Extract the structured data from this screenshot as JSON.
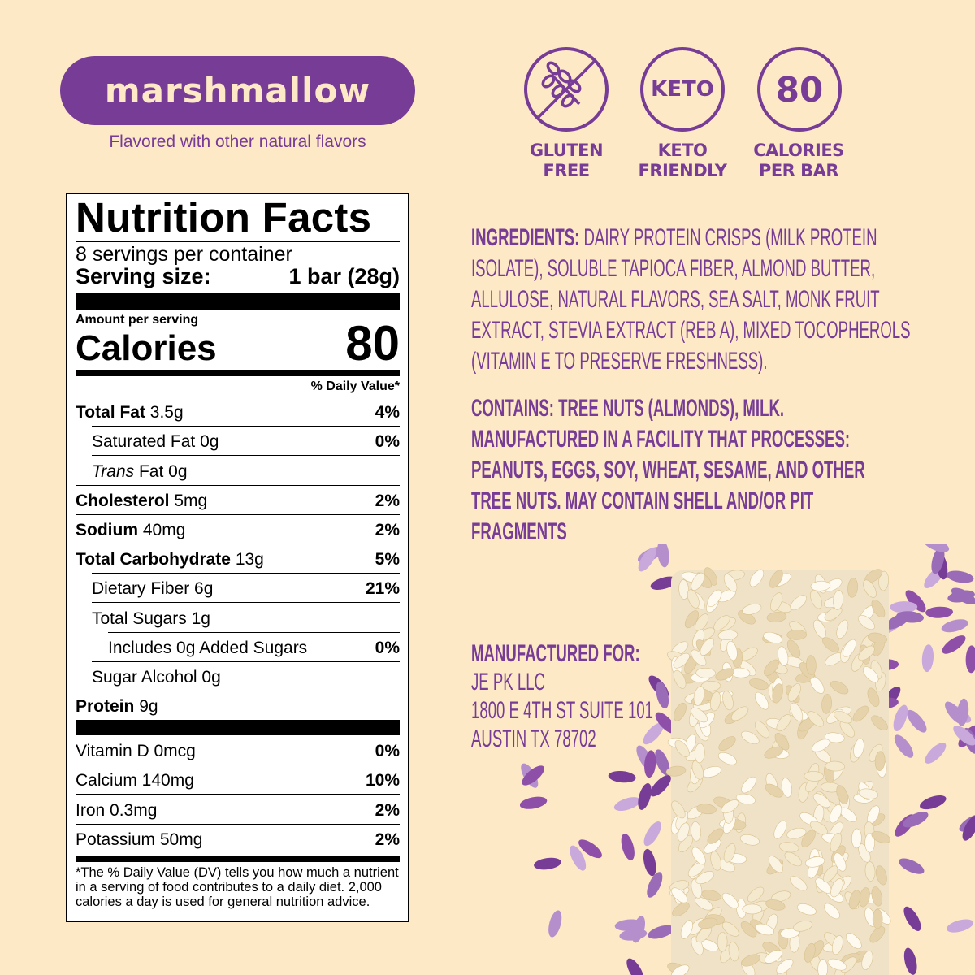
{
  "flavor": "marshmallow",
  "flavor_note": "Flavored with other natural flavors",
  "badges": [
    {
      "icon": "no-gluten-wheat-icon",
      "line1": "GLUTEN",
      "line2": "FREE"
    },
    {
      "icon_text": "KETO",
      "line1": "KETO",
      "line2": "FRIENDLY"
    },
    {
      "icon_text": "80",
      "line1": "CALORIES",
      "line2": "PER BAR"
    }
  ],
  "nutrition": {
    "title": "Nutrition Facts",
    "servings": "8 servings per container",
    "serving_size_label": "Serving size:",
    "serving_size": "1 bar (28g)",
    "amount_per": "Amount per serving",
    "calories_label": "Calories",
    "calories": "80",
    "dv_header": "% Daily Value*",
    "rows": [
      {
        "bold": "Total Fat",
        "amt": "3.5g",
        "dv": "4%",
        "indent": 0
      },
      {
        "bold": "",
        "amt": "Saturated Fat 0g",
        "dv": "0%",
        "indent": 1
      },
      {
        "italic": "Trans",
        "amt": "Fat 0g",
        "dv": "",
        "indent": 1
      },
      {
        "bold": "Cholesterol",
        "amt": "5mg",
        "dv": "2%",
        "indent": 0
      },
      {
        "bold": "Sodium",
        "amt": "40mg",
        "dv": "2%",
        "indent": 0
      },
      {
        "bold": "Total Carbohydrate",
        "amt": "13g",
        "dv": "5%",
        "indent": 0
      },
      {
        "bold": "",
        "amt": "Dietary Fiber 6g",
        "dv": "21%",
        "indent": 1
      },
      {
        "bold": "",
        "amt": "Total Sugars 1g",
        "dv": "",
        "indent": 1
      },
      {
        "bold": "",
        "amt": "Includes 0g Added Sugars",
        "dv": "0%",
        "indent": 2
      },
      {
        "bold": "",
        "amt": "Sugar Alcohol 0g",
        "dv": "",
        "indent": 1
      },
      {
        "bold": "Protein",
        "amt": "9g",
        "dv": "",
        "indent": 0
      }
    ],
    "vitamins": [
      {
        "amt": "Vitamin D 0mcg",
        "dv": "0%"
      },
      {
        "amt": "Calcium 140mg",
        "dv": "10%"
      },
      {
        "amt": "Iron 0.3mg",
        "dv": "2%"
      },
      {
        "amt": "Potassium 50mg",
        "dv": "2%"
      }
    ],
    "footnote": "*The % Daily Value (DV) tells you how much a nutrient in a serving of food contributes to a daily diet. 2,000 calories a day is used for general nutrition advice."
  },
  "ingredients": {
    "label": "INGREDIENTS:",
    "lines": [
      "DAIRY PROTEIN CRISPS (MILK PROTEIN",
      "ISOLATE), SOLUBLE TAPIOCA FIBER, ALMOND BUTTER,",
      "ALLULOSE, NATURAL FLAVORS, SEA SALT, MONK FRUIT",
      "EXTRACT, STEVIA EXTRACT (REB A), MIXED TOCOPHEROLS",
      "(VITAMIN E TO PRESERVE FRESHNESS)."
    ]
  },
  "contains": [
    "CONTAINS: TREE NUTS (ALMONDS), MILK.",
    "MANUFACTURED IN A FACILITY THAT PROCESSES:",
    "PEANUTS, EGGS, SOY, WHEAT, SESAME, AND OTHER",
    "TREE NUTS. MAY CONTAIN SHELL AND/OR PIT",
    "FRAGMENTS"
  ],
  "manufacturer": {
    "label": "MANUFACTURED FOR:",
    "lines": [
      "JE PK LLC",
      "1800 E 4TH ST SUITE 101",
      "AUSTIN TX 78702"
    ]
  },
  "colors": {
    "purple": "#763c96",
    "background": "#fde9c6"
  }
}
